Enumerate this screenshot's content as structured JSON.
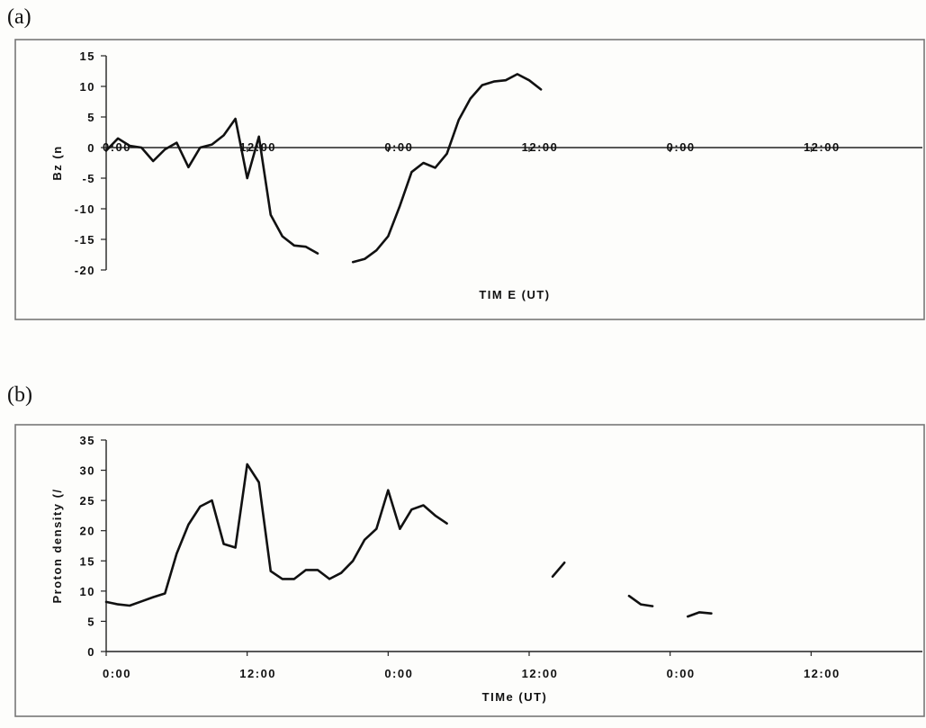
{
  "panels": {
    "a": {
      "label": "(a)"
    },
    "b": {
      "label": "(b)"
    }
  },
  "chart_data": [
    {
      "type": "line",
      "ylabel": "Bz (n",
      "xlabel": "TIM E (UT)",
      "ylim": [
        -20,
        15
      ],
      "yticks": [
        15,
        10,
        5,
        0,
        -5,
        -10,
        -15,
        -20
      ],
      "x_unit": "hours",
      "x_ticks": [
        {
          "x": 0,
          "label": "0:00"
        },
        {
          "x": 12,
          "label": "12:00"
        },
        {
          "x": 24,
          "label": "0:00"
        },
        {
          "x": 36,
          "label": "12:00"
        },
        {
          "x": 48,
          "label": "0:00"
        },
        {
          "x": 60,
          "label": "12:00"
        }
      ],
      "xlim": [
        0,
        72
      ],
      "legend": "none",
      "grid": false,
      "series": [
        {
          "segments": [
            [
              [
                0,
                -0.5
              ],
              [
                1,
                1.5
              ],
              [
                2,
                0.3
              ],
              [
                3,
                0
              ],
              [
                4,
                -2.2
              ],
              [
                5,
                -0.3
              ],
              [
                6,
                0.8
              ],
              [
                7,
                -3.2
              ],
              [
                8,
                0
              ],
              [
                9,
                0.5
              ],
              [
                10,
                2
              ],
              [
                11,
                4.7
              ],
              [
                12,
                -5
              ],
              [
                13,
                1.8
              ],
              [
                14,
                -11
              ],
              [
                15,
                -14.5
              ],
              [
                16,
                -16
              ],
              [
                17,
                -16.2
              ],
              [
                18,
                -17.3
              ]
            ],
            [
              [
                21,
                -18.7
              ],
              [
                22,
                -18.2
              ],
              [
                23,
                -16.8
              ],
              [
                24,
                -14.5
              ],
              [
                25,
                -9.5
              ],
              [
                26,
                -4
              ],
              [
                27,
                -2.5
              ],
              [
                28,
                -3.3
              ],
              [
                29,
                -1
              ],
              [
                30,
                4.5
              ],
              [
                31,
                8
              ],
              [
                32,
                10.2
              ],
              [
                33,
                10.8
              ],
              [
                34,
                11
              ],
              [
                35,
                12
              ],
              [
                36,
                11
              ],
              [
                37,
                9.5
              ]
            ]
          ]
        }
      ]
    },
    {
      "type": "line",
      "ylabel": "Proton density (/",
      "xlabel": "TIMe (UT)",
      "ylim": [
        0,
        35
      ],
      "yticks": [
        35,
        30,
        25,
        20,
        15,
        10,
        5,
        0
      ],
      "x_unit": "hours",
      "x_ticks": [
        {
          "x": 0,
          "label": "0:00"
        },
        {
          "x": 12,
          "label": "12:00"
        },
        {
          "x": 24,
          "label": "0:00"
        },
        {
          "x": 36,
          "label": "12:00"
        },
        {
          "x": 48,
          "label": "0:00"
        },
        {
          "x": 60,
          "label": "12:00"
        }
      ],
      "xlim": [
        0,
        72
      ],
      "legend": "none",
      "grid": false,
      "series": [
        {
          "segments": [
            [
              [
                0,
                8.2
              ],
              [
                1,
                7.8
              ],
              [
                2,
                7.6
              ],
              [
                3,
                8.3
              ],
              [
                4,
                9
              ],
              [
                5,
                9.6
              ],
              [
                6,
                16.2
              ],
              [
                7,
                21
              ],
              [
                8,
                24
              ],
              [
                9,
                25
              ],
              [
                10,
                17.8
              ],
              [
                11,
                17.2
              ],
              [
                12,
                31
              ],
              [
                13,
                28
              ],
              [
                14,
                13.3
              ],
              [
                15,
                12
              ],
              [
                16,
                12
              ],
              [
                17,
                13.5
              ],
              [
                18,
                13.5
              ],
              [
                19,
                12
              ],
              [
                20,
                13
              ],
              [
                21,
                15
              ],
              [
                22,
                18.5
              ],
              [
                23,
                20.3
              ],
              [
                24,
                26.7
              ],
              [
                25,
                20.3
              ],
              [
                26,
                23.5
              ],
              [
                27,
                24.2
              ],
              [
                28,
                22.5
              ],
              [
                29,
                21.2
              ]
            ],
            [
              [
                38,
                12.4
              ],
              [
                39,
                14.7
              ]
            ],
            [
              [
                44.5,
                9.2
              ],
              [
                45.5,
                7.8
              ],
              [
                46.5,
                7.5
              ]
            ],
            [
              [
                49.5,
                5.8
              ],
              [
                50.5,
                6.5
              ],
              [
                51.5,
                6.3
              ]
            ]
          ]
        }
      ]
    }
  ]
}
